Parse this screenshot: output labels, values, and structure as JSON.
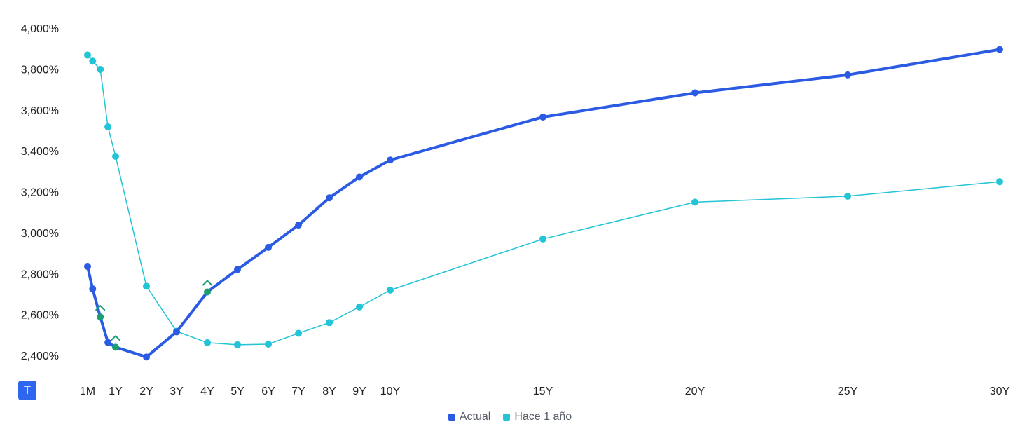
{
  "badge": {
    "label": "T"
  },
  "chart_data": {
    "type": "line",
    "title": "",
    "xlabel": "",
    "ylabel": "",
    "x_ticks": [
      "1M",
      "1Y",
      "2Y",
      "3Y",
      "4Y",
      "5Y",
      "6Y",
      "7Y",
      "8Y",
      "9Y",
      "10Y",
      "15Y",
      "20Y",
      "25Y",
      "30Y"
    ],
    "y_ticks": [
      "2,400%",
      "2,600%",
      "2,800%",
      "3,000%",
      "3,200%",
      "3,400%",
      "3,600%",
      "3,800%",
      "4,000%"
    ],
    "ylim": [
      2.4,
      4.0
    ],
    "x_unit": "years",
    "grid": false,
    "legend_position": "bottom-center",
    "series": [
      {
        "name": "Actual",
        "color": "#2b5be3",
        "x": [
          0.083,
          0.25,
          0.5,
          0.75,
          1,
          2,
          3,
          4,
          5,
          6,
          7,
          8,
          9,
          10,
          15,
          20,
          25,
          30
        ],
        "values": [
          2.835,
          2.725,
          2.588,
          2.463,
          2.44,
          2.392,
          2.515,
          2.71,
          2.82,
          2.928,
          3.037,
          3.17,
          3.272,
          3.355,
          3.565,
          3.683,
          3.771,
          3.895
        ],
        "markers_up": [
          2,
          4,
          7
        ]
      },
      {
        "name": "Hace 1 año",
        "color": "#22c4d6",
        "x": [
          0.083,
          0.25,
          0.5,
          0.75,
          1,
          2,
          3,
          4,
          5,
          6,
          7,
          8,
          9,
          10,
          15,
          20,
          25,
          30
        ],
        "values": [
          3.868,
          3.838,
          3.798,
          3.517,
          3.373,
          2.738,
          2.518,
          2.462,
          2.452,
          2.455,
          2.508,
          2.56,
          2.637,
          2.719,
          2.969,
          3.149,
          3.178,
          3.249
        ]
      }
    ],
    "marker_color": "#1a9e72"
  }
}
